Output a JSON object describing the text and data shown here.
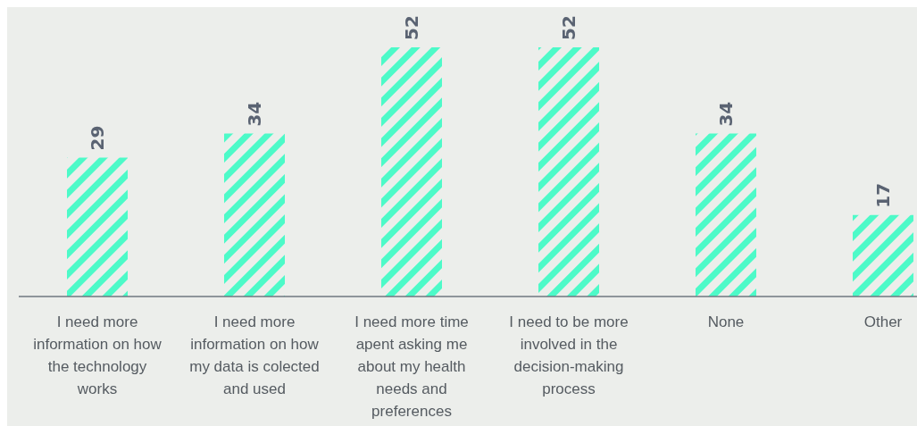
{
  "chart_data": {
    "type": "bar",
    "categories": [
      "I need more information on how the technology works",
      "I need more information on how my data is colected and used",
      "I need more time apent asking me about my health needs and preferences",
      "I need to be more involved in the decision-making process",
      "None",
      "Other"
    ],
    "values": [
      29,
      34,
      52,
      52,
      34,
      17
    ],
    "color": "#4dfac8",
    "data_labels": true
  }
}
